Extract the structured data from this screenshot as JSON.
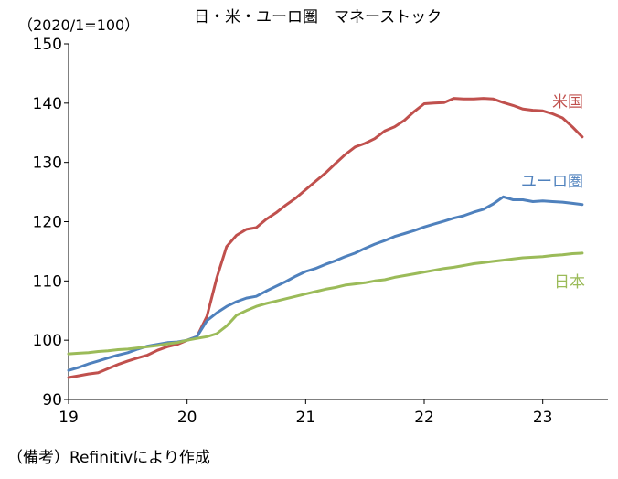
{
  "chart_data": {
    "type": "line",
    "title": "日・米・ユーロ圏　マネーストック",
    "unit_label": "（2020/1=100）",
    "note": "（備考）Refinitivにより作成",
    "xlim": [
      2019.0,
      2023.55
    ],
    "ylim": [
      90,
      150
    ],
    "yticks": [
      "90",
      "100",
      "110",
      "120",
      "130",
      "140",
      "150"
    ],
    "xticks": [
      {
        "value": 2019,
        "label": "19"
      },
      {
        "value": 2020,
        "label": "20"
      },
      {
        "value": 2021,
        "label": "21"
      },
      {
        "value": 2022,
        "label": "22"
      },
      {
        "value": 2023,
        "label": "23"
      }
    ],
    "grid": false,
    "series": [
      {
        "name": "米国",
        "color": "#c0504d",
        "points": [
          [
            2019.0,
            93.7
          ],
          [
            2019.083,
            94.0
          ],
          [
            2019.167,
            94.3
          ],
          [
            2019.25,
            94.5
          ],
          [
            2019.333,
            95.2
          ],
          [
            2019.417,
            95.9
          ],
          [
            2019.5,
            96.5
          ],
          [
            2019.583,
            97.0
          ],
          [
            2019.667,
            97.5
          ],
          [
            2019.75,
            98.3
          ],
          [
            2019.833,
            98.9
          ],
          [
            2019.917,
            99.3
          ],
          [
            2020.0,
            100.0
          ],
          [
            2020.083,
            100.6
          ],
          [
            2020.167,
            104.0
          ],
          [
            2020.25,
            110.5
          ],
          [
            2020.333,
            115.8
          ],
          [
            2020.417,
            117.7
          ],
          [
            2020.5,
            118.7
          ],
          [
            2020.583,
            119.0
          ],
          [
            2020.667,
            120.4
          ],
          [
            2020.75,
            121.5
          ],
          [
            2020.833,
            122.8
          ],
          [
            2020.917,
            124.0
          ],
          [
            2021.0,
            125.4
          ],
          [
            2021.083,
            126.8
          ],
          [
            2021.167,
            128.2
          ],
          [
            2021.25,
            129.8
          ],
          [
            2021.333,
            131.3
          ],
          [
            2021.417,
            132.6
          ],
          [
            2021.5,
            133.2
          ],
          [
            2021.583,
            134.0
          ],
          [
            2021.667,
            135.3
          ],
          [
            2021.75,
            136.0
          ],
          [
            2021.833,
            137.1
          ],
          [
            2021.917,
            138.6
          ],
          [
            2022.0,
            139.9
          ],
          [
            2022.083,
            140.0
          ],
          [
            2022.167,
            140.1
          ],
          [
            2022.25,
            140.8
          ],
          [
            2022.333,
            140.7
          ],
          [
            2022.417,
            140.7
          ],
          [
            2022.5,
            140.8
          ],
          [
            2022.583,
            140.7
          ],
          [
            2022.667,
            140.1
          ],
          [
            2022.75,
            139.6
          ],
          [
            2022.833,
            139.0
          ],
          [
            2022.917,
            138.8
          ],
          [
            2023.0,
            138.7
          ],
          [
            2023.083,
            138.2
          ],
          [
            2023.167,
            137.5
          ],
          [
            2023.25,
            136.0
          ],
          [
            2023.333,
            134.3
          ]
        ]
      },
      {
        "name": "ユーロ圏",
        "color": "#4f81bd",
        "points": [
          [
            2019.0,
            94.9
          ],
          [
            2019.083,
            95.4
          ],
          [
            2019.167,
            96.0
          ],
          [
            2019.25,
            96.5
          ],
          [
            2019.333,
            97.0
          ],
          [
            2019.417,
            97.5
          ],
          [
            2019.5,
            97.9
          ],
          [
            2019.583,
            98.5
          ],
          [
            2019.667,
            99.0
          ],
          [
            2019.75,
            99.3
          ],
          [
            2019.833,
            99.6
          ],
          [
            2019.917,
            99.7
          ],
          [
            2020.0,
            100.0
          ],
          [
            2020.083,
            100.6
          ],
          [
            2020.167,
            103.3
          ],
          [
            2020.25,
            104.6
          ],
          [
            2020.333,
            105.7
          ],
          [
            2020.417,
            106.5
          ],
          [
            2020.5,
            107.1
          ],
          [
            2020.583,
            107.4
          ],
          [
            2020.667,
            108.3
          ],
          [
            2020.75,
            109.1
          ],
          [
            2020.833,
            109.9
          ],
          [
            2020.917,
            110.8
          ],
          [
            2021.0,
            111.6
          ],
          [
            2021.083,
            112.1
          ],
          [
            2021.167,
            112.8
          ],
          [
            2021.25,
            113.4
          ],
          [
            2021.333,
            114.1
          ],
          [
            2021.417,
            114.7
          ],
          [
            2021.5,
            115.5
          ],
          [
            2021.583,
            116.2
          ],
          [
            2021.667,
            116.8
          ],
          [
            2021.75,
            117.5
          ],
          [
            2021.833,
            118.0
          ],
          [
            2021.917,
            118.5
          ],
          [
            2022.0,
            119.1
          ],
          [
            2022.083,
            119.6
          ],
          [
            2022.167,
            120.1
          ],
          [
            2022.25,
            120.6
          ],
          [
            2022.333,
            121.0
          ],
          [
            2022.417,
            121.6
          ],
          [
            2022.5,
            122.1
          ],
          [
            2022.583,
            123.0
          ],
          [
            2022.667,
            124.2
          ],
          [
            2022.75,
            123.7
          ],
          [
            2022.833,
            123.7
          ],
          [
            2022.917,
            123.4
          ],
          [
            2023.0,
            123.5
          ],
          [
            2023.083,
            123.4
          ],
          [
            2023.167,
            123.3
          ],
          [
            2023.25,
            123.1
          ],
          [
            2023.333,
            122.9
          ]
        ]
      },
      {
        "name": "日本",
        "color": "#9bbb59",
        "points": [
          [
            2019.0,
            97.7
          ],
          [
            2019.083,
            97.8
          ],
          [
            2019.167,
            97.9
          ],
          [
            2019.25,
            98.1
          ],
          [
            2019.333,
            98.2
          ],
          [
            2019.417,
            98.4
          ],
          [
            2019.5,
            98.5
          ],
          [
            2019.583,
            98.7
          ],
          [
            2019.667,
            98.9
          ],
          [
            2019.75,
            99.1
          ],
          [
            2019.833,
            99.4
          ],
          [
            2019.917,
            99.6
          ],
          [
            2020.0,
            100.0
          ],
          [
            2020.083,
            100.3
          ],
          [
            2020.167,
            100.6
          ],
          [
            2020.25,
            101.1
          ],
          [
            2020.333,
            102.4
          ],
          [
            2020.417,
            104.2
          ],
          [
            2020.5,
            105.0
          ],
          [
            2020.583,
            105.7
          ],
          [
            2020.667,
            106.2
          ],
          [
            2020.75,
            106.6
          ],
          [
            2020.833,
            107.0
          ],
          [
            2020.917,
            107.4
          ],
          [
            2021.0,
            107.8
          ],
          [
            2021.083,
            108.2
          ],
          [
            2021.167,
            108.6
          ],
          [
            2021.25,
            108.9
          ],
          [
            2021.333,
            109.3
          ],
          [
            2021.417,
            109.5
          ],
          [
            2021.5,
            109.7
          ],
          [
            2021.583,
            110.0
          ],
          [
            2021.667,
            110.2
          ],
          [
            2021.75,
            110.6
          ],
          [
            2021.833,
            110.9
          ],
          [
            2021.917,
            111.2
          ],
          [
            2022.0,
            111.5
          ],
          [
            2022.083,
            111.8
          ],
          [
            2022.167,
            112.1
          ],
          [
            2022.25,
            112.3
          ],
          [
            2022.333,
            112.6
          ],
          [
            2022.417,
            112.9
          ],
          [
            2022.5,
            113.1
          ],
          [
            2022.583,
            113.3
          ],
          [
            2022.667,
            113.5
          ],
          [
            2022.75,
            113.7
          ],
          [
            2022.833,
            113.9
          ],
          [
            2022.917,
            114.0
          ],
          [
            2023.0,
            114.1
          ],
          [
            2023.083,
            114.3
          ],
          [
            2023.167,
            114.4
          ],
          [
            2023.25,
            114.6
          ],
          [
            2023.333,
            114.7
          ]
        ]
      }
    ]
  }
}
